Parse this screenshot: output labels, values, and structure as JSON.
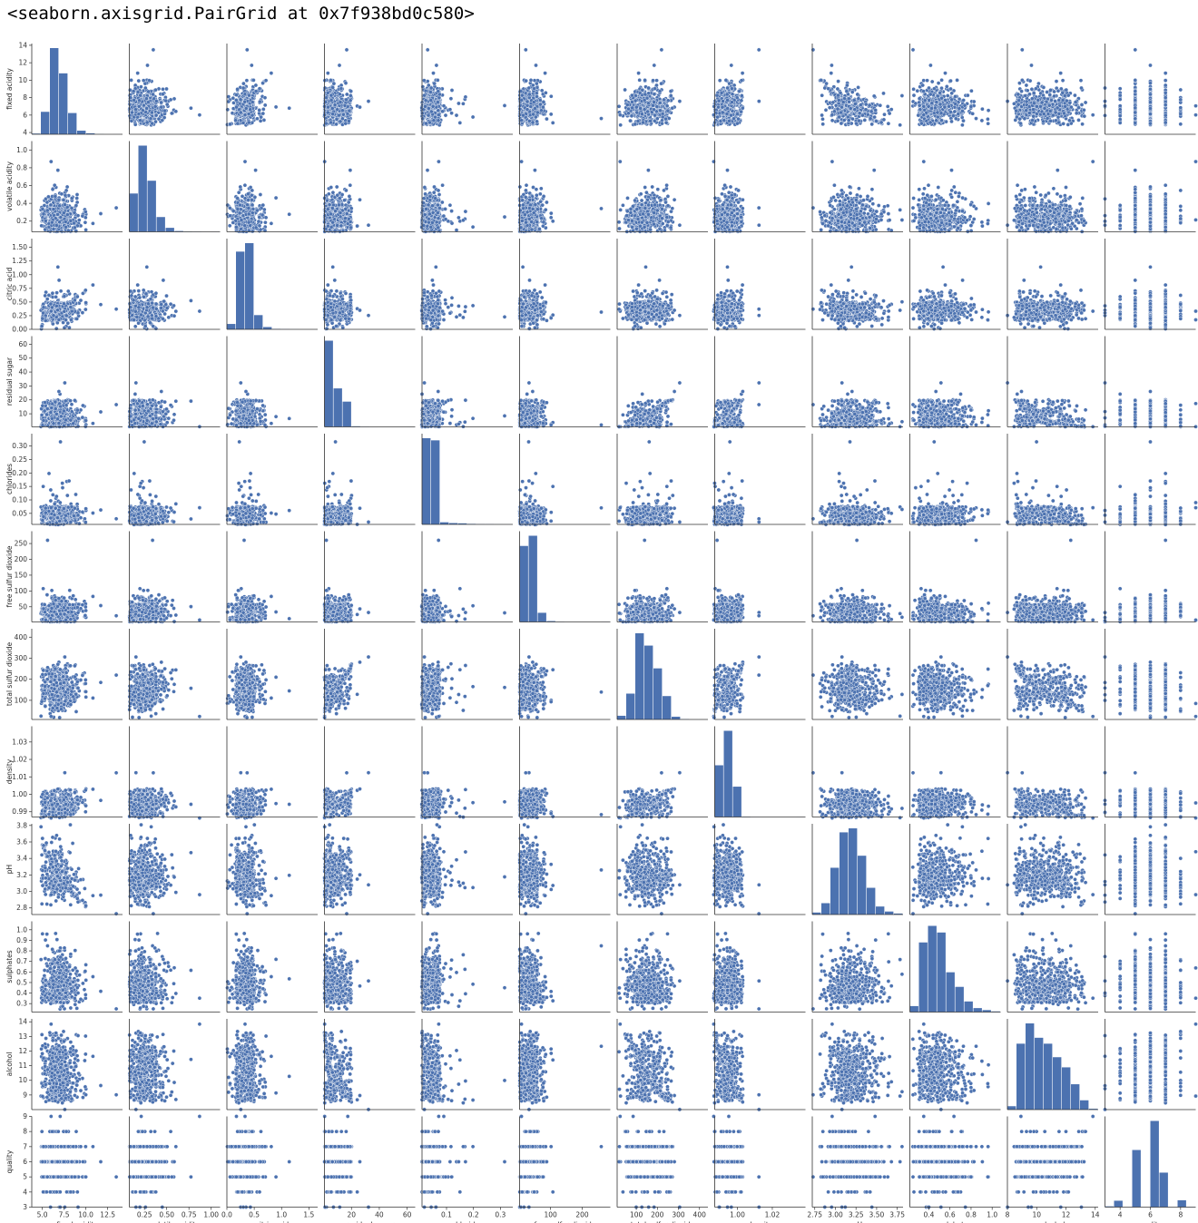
{
  "output_repr": "<seaborn.axisgrid.PairGrid at 0x7f938bd0c580>",
  "chart_data": {
    "type": "pairgrid",
    "point_color": "#4c72b0",
    "diag_kind": "hist",
    "offdiag_kind": "scatter",
    "variables": [
      {
        "name": "fixed acidity",
        "range": [
          3.8,
          14.2
        ],
        "xticks": [
          5.0,
          7.5,
          10.0,
          12.5
        ],
        "xtick_labels": [
          "5.0",
          "7.5",
          "10.0",
          "12.5"
        ],
        "yticks": [
          4,
          6,
          8,
          10,
          12,
          14
        ],
        "ytick_labels": [
          "4",
          "6",
          "8",
          "10",
          "12",
          "14"
        ],
        "hist": {
          "edges": [
            3.8,
            4.84,
            5.88,
            6.92,
            7.96,
            9.0,
            10.04,
            11.08,
            12.12,
            13.16,
            14.2
          ],
          "counts": [
            18,
            560,
            2150,
            1520,
            530,
            90,
            25,
            3,
            0,
            1
          ]
        }
      },
      {
        "name": "volatile acidity",
        "range": [
          0.08,
          1.1
        ],
        "xticks": [
          0.25,
          0.5,
          0.75,
          1.0
        ],
        "xtick_labels": [
          "0.25",
          "0.50",
          "0.75",
          "1.00"
        ],
        "yticks": [
          0.2,
          0.4,
          0.6,
          0.8,
          1.0
        ],
        "ytick_labels": [
          "0.2",
          "0.4",
          "0.6",
          "0.8",
          "1.0"
        ],
        "hist": {
          "edges": [
            0.08,
            0.182,
            0.284,
            0.386,
            0.488,
            0.59,
            0.692,
            0.794,
            0.896,
            0.998,
            1.1
          ],
          "counts": [
            960,
            2160,
            1280,
            370,
            100,
            20,
            6,
            3,
            0,
            1
          ]
        }
      },
      {
        "name": "citric acid",
        "range": [
          0,
          1.66
        ],
        "xticks": [
          0.0,
          0.5,
          1.0,
          1.5
        ],
        "xtick_labels": [
          "0.0",
          "0.5",
          "1.0",
          "1.5"
        ],
        "yticks": [
          0.0,
          0.25,
          0.5,
          0.75,
          1.0,
          1.25,
          1.5
        ],
        "ytick_labels": [
          "0.00",
          "0.25",
          "0.50",
          "0.75",
          "1.00",
          "1.25",
          "1.50"
        ],
        "hist": {
          "edges": [
            0,
            0.166,
            0.332,
            0.498,
            0.664,
            0.83,
            0.996,
            1.162,
            1.328,
            1.494,
            1.66
          ],
          "counts": [
            140,
            2020,
            2240,
            370,
            60,
            12,
            6,
            2,
            0,
            1
          ]
        }
      },
      {
        "name": "residual sugar",
        "range": [
          0.6,
          65.8
        ],
        "xticks": [
          0,
          20,
          40,
          60
        ],
        "xtick_labels": [
          "0",
          "20",
          "40",
          "60"
        ],
        "yticks": [
          0,
          10,
          20,
          30,
          40,
          50,
          60
        ],
        "ytick_labels": [
          "0",
          "10",
          "20",
          "30",
          "40",
          "50",
          "60"
        ],
        "hist": {
          "edges": [
            0.6,
            7.12,
            13.64,
            20.16,
            26.68,
            33.2,
            39.72,
            46.24,
            52.76,
            59.28,
            65.8
          ],
          "counts": [
            2800,
            1250,
            820,
            20,
            4,
            1,
            0,
            0,
            0,
            1
          ]
        }
      },
      {
        "name": "chlorides",
        "range": [
          0.009,
          0.346
        ],
        "xticks": [
          0.0,
          0.1,
          0.2,
          0.3
        ],
        "xtick_labels": [
          "0.0",
          "0.1",
          "0.2",
          "0.3"
        ],
        "yticks": [
          0.05,
          0.1,
          0.15,
          0.2,
          0.25,
          0.3,
          0.35
        ],
        "ytick_labels": [
          "0.05",
          "0.10",
          "0.15",
          "0.20",
          "0.25",
          "0.30",
          "0.35"
        ],
        "hist": {
          "edges": [
            0.009,
            0.0427,
            0.0764,
            0.1101,
            0.1438,
            0.1775,
            0.2112,
            0.2449,
            0.2786,
            0.3123,
            0.346
          ],
          "counts": [
            3230,
            3150,
            80,
            50,
            40,
            20,
            10,
            8,
            5,
            3
          ]
        }
      },
      {
        "name": "free sulfur dioxide",
        "range": [
          2,
          289
        ],
        "xticks": [
          0,
          100,
          200,
          300
        ],
        "xtick_labels": [
          "0",
          "100",
          "200",
          "300"
        ],
        "yticks": [
          0,
          50,
          100,
          150,
          200,
          250,
          300
        ],
        "ytick_labels": [
          "0",
          "50",
          "100",
          "150",
          "200",
          "250",
          "300"
        ],
        "hist": {
          "edges": [
            2,
            30.7,
            59.4,
            88.1,
            116.8,
            145.5,
            174.2,
            202.9,
            231.6,
            260.3,
            289
          ],
          "counts": [
            2160,
            2450,
            260,
            25,
            4,
            0,
            0,
            0,
            0,
            1
          ]
        }
      },
      {
        "name": "total sulfur dioxide",
        "range": [
          9,
          440
        ],
        "xticks": [
          0,
          100,
          200,
          300,
          400
        ],
        "xtick_labels": [
          "0",
          "100",
          "200",
          "300",
          "400"
        ],
        "yticks": [
          0,
          100,
          200,
          300,
          400
        ],
        "ytick_labels": [
          "0",
          "100",
          "200",
          "300",
          "400"
        ],
        "hist": {
          "edges": [
            9,
            52.1,
            95.2,
            138.3,
            181.4,
            224.5,
            267.6,
            310.7,
            353.8,
            396.9,
            440
          ],
          "counts": [
            60,
            420,
            1400,
            1200,
            830,
            380,
            45,
            5,
            1,
            1
          ]
        }
      },
      {
        "name": "density",
        "range": [
          0.987,
          1.039
        ],
        "xticks": [
          1.0,
          1.02,
          1.04
        ],
        "xtick_labels": [
          "1.00",
          "1.02",
          "1.04"
        ],
        "yticks": [
          0.99,
          1.0,
          1.01,
          1.02,
          1.03,
          1.04
        ],
        "ytick_labels": [
          "0.99",
          "1.00",
          "1.01",
          "1.02",
          "1.03",
          "1.04"
        ],
        "hist": {
          "edges": [
            0.987,
            0.9922,
            0.9974,
            1.0026,
            1.0078,
            1.013,
            1.0182,
            1.0234,
            1.0286,
            1.0338,
            1.039
          ],
          "counts": [
            1500,
            2500,
            880,
            10,
            1,
            0,
            0,
            0,
            0,
            1
          ]
        }
      },
      {
        "name": "pH",
        "range": [
          2.72,
          3.82
        ],
        "xticks": [
          2.75,
          3.0,
          3.25,
          3.5,
          3.75
        ],
        "xtick_labels": [
          "2.75",
          "3.00",
          "3.25",
          "3.50",
          "3.75"
        ],
        "yticks": [
          2.8,
          3.0,
          3.2,
          3.4,
          3.6,
          3.8
        ],
        "ytick_labels": [
          "2.8",
          "3.0",
          "3.2",
          "3.4",
          "3.6",
          "3.8"
        ],
        "hist": {
          "edges": [
            2.72,
            2.83,
            2.94,
            3.05,
            3.16,
            3.27,
            3.38,
            3.49,
            3.6,
            3.71,
            3.82
          ],
          "counts": [
            30,
            170,
            700,
            1230,
            1290,
            880,
            400,
            120,
            45,
            15
          ]
        }
      },
      {
        "name": "sulphates",
        "range": [
          0.22,
          1.08
        ],
        "xticks": [
          0.2,
          0.4,
          0.6,
          0.8,
          1.0
        ],
        "xtick_labels": [
          "0.2",
          "0.4",
          "0.6",
          "0.8",
          "1.0"
        ],
        "yticks": [
          0.2,
          0.3,
          0.4,
          0.5,
          0.6,
          0.7,
          0.8,
          0.9,
          1.0
        ],
        "ytick_labels": [
          "0.2",
          "0.3",
          "0.4",
          "0.5",
          "0.6",
          "0.7",
          "0.8",
          "0.9",
          "1.0"
        ],
        "hist": {
          "edges": [
            0.22,
            0.306,
            0.392,
            0.478,
            0.564,
            0.65,
            0.736,
            0.822,
            0.908,
            0.994,
            1.08
          ],
          "counts": [
            90,
            1050,
            1300,
            1200,
            600,
            380,
            160,
            60,
            30,
            10
          ]
        }
      },
      {
        "name": "alcohol",
        "range": [
          8.0,
          14.2
        ],
        "xticks": [
          8,
          10,
          12,
          14
        ],
        "xtick_labels": [
          "8",
          "10",
          "12",
          "14"
        ],
        "yticks": [
          9,
          10,
          11,
          12,
          13,
          14
        ],
        "ytick_labels": [
          "9",
          "10",
          "11",
          "12",
          "13",
          "14"
        ],
        "hist": {
          "edges": [
            8.0,
            8.62,
            9.24,
            9.86,
            10.48,
            11.1,
            11.72,
            12.34,
            12.96,
            13.58,
            14.2
          ],
          "counts": [
            40,
            780,
            1020,
            850,
            780,
            620,
            500,
            300,
            110,
            10
          ]
        }
      },
      {
        "name": "quality",
        "range": [
          3,
          9
        ],
        "xticks": [
          4,
          6,
          8
        ],
        "xtick_labels": [
          "4",
          "6",
          "8"
        ],
        "yticks": [
          3,
          4,
          5,
          6,
          7,
          8,
          9
        ],
        "ytick_labels": [
          "3",
          "4",
          "5",
          "6",
          "7",
          "8",
          "9"
        ],
        "hist": {
          "edges": [
            3,
            3.6,
            4.2,
            4.8,
            5.4,
            6.0,
            6.6,
            7.2,
            7.8,
            8.4,
            9.0
          ],
          "counts": [
            20,
            163,
            0,
            1457,
            0,
            2198,
            880,
            0,
            175,
            5
          ]
        }
      }
    ]
  }
}
